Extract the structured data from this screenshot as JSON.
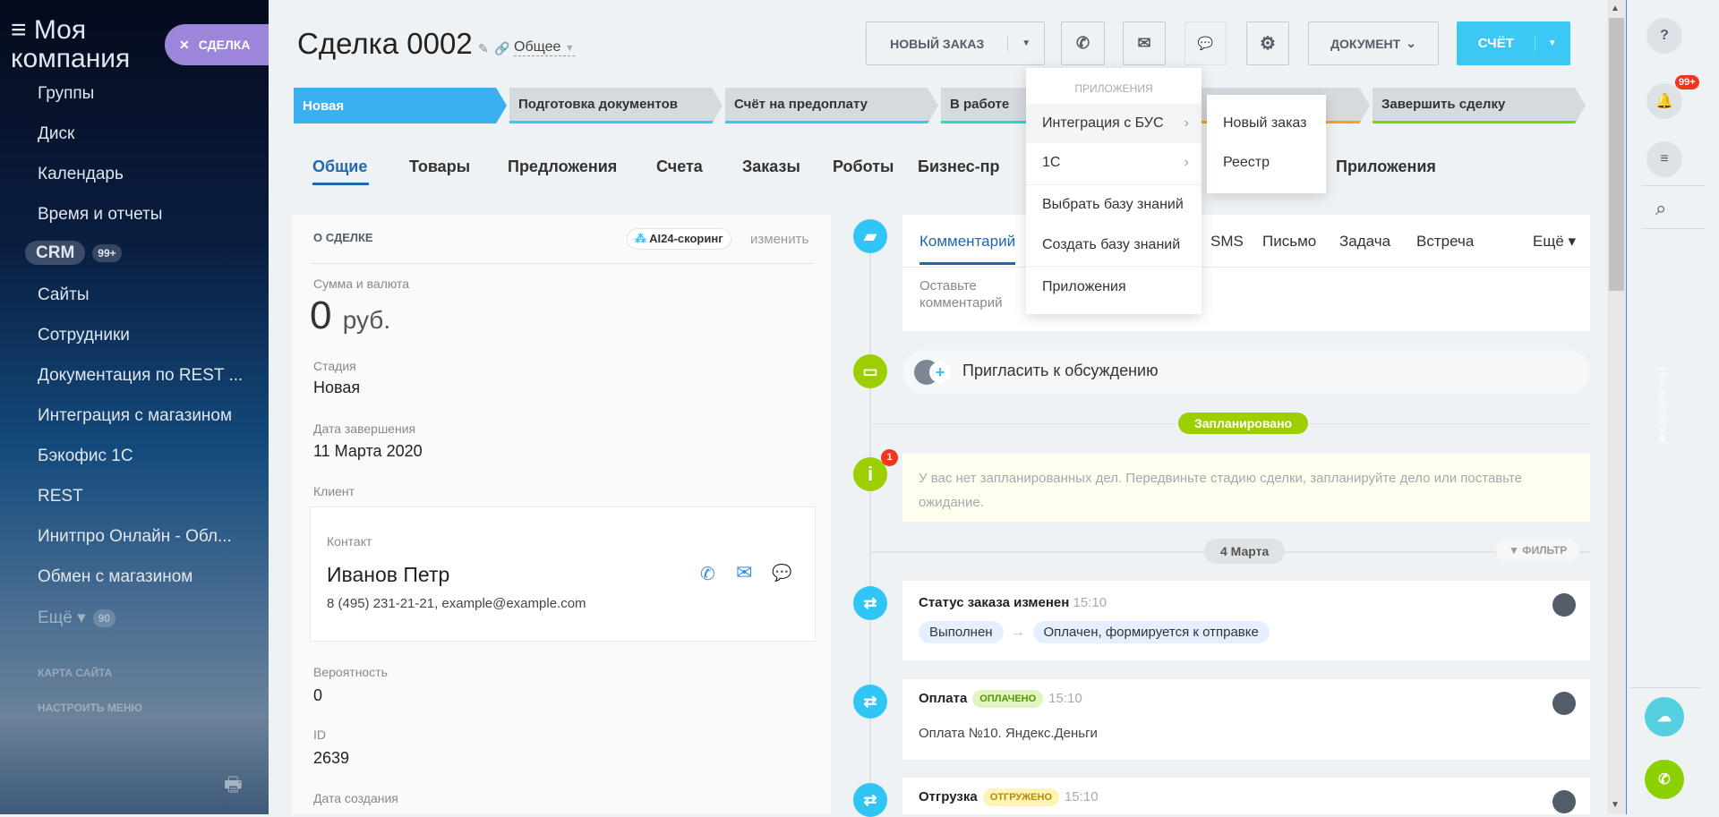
{
  "sidebar": {
    "logo": "Моя компания",
    "deal_button": "СДЕЛКА",
    "items": [
      {
        "label": "Группы"
      },
      {
        "label": "Диск"
      },
      {
        "label": "Календарь"
      },
      {
        "label": "Время и отчеты"
      },
      {
        "label": "CRM",
        "badge": "99+"
      },
      {
        "label": "Сайты"
      },
      {
        "label": "Сотрудники"
      },
      {
        "label": "Документация по REST ..."
      },
      {
        "label": "Интеграция с магазином"
      },
      {
        "label": "Бэкофис 1С"
      },
      {
        "label": "REST"
      },
      {
        "label": "Инитпро Онлайн - Обл..."
      },
      {
        "label": "Обмен с магазином"
      },
      {
        "label": "Ещё",
        "badge": "90"
      }
    ],
    "site_map": "КАРТА САЙТА",
    "configure_menu": "НАСТРОИТЬ МЕНЮ"
  },
  "header": {
    "title": "Сделка 0002",
    "category": "Общее",
    "new_order": "НОВЫЙ ЗАКАЗ",
    "document": "ДОКУМЕНТ",
    "invoice": "СЧЁТ"
  },
  "stages": [
    {
      "label": "Новая",
      "color": "#3bb0f0"
    },
    {
      "label": "Подготовка документов",
      "color": "#3bc8f0"
    },
    {
      "label": "Счёт на предоплату",
      "color": "#3bc8f0"
    },
    {
      "label": "В работе",
      "color": "#2fd6c0"
    },
    {
      "label": "",
      "color": "#ff9f1a"
    },
    {
      "label": "Завершить сделку",
      "color": "#7bd500"
    }
  ],
  "tabs": [
    "Общие",
    "Товары",
    "Предложения",
    "Счета",
    "Заказы",
    "Роботы",
    "Бизнес-пр",
    "Приложения"
  ],
  "about": {
    "heading": "О СДЕЛКЕ",
    "scoring": "AI24-скоринг",
    "edit": "изменить",
    "amount_label": "Сумма и валюта",
    "amount": "0",
    "currency": "руб.",
    "stage_label": "Стадия",
    "stage": "Новая",
    "close_label": "Дата завершения",
    "close_date": "11 Марта 2020",
    "client_label": "Клиент",
    "contact_label": "Контакт",
    "contact_name": "Иванов Петр",
    "contact_info": "8 (495) 231-21-21, example@example.com",
    "probability_label": "Вероятность",
    "probability": "0",
    "id_label": "ID",
    "id": "2639",
    "created_label": "Дата создания"
  },
  "timeline": {
    "tabs": [
      "Комментарий",
      "SMS",
      "Письмо",
      "Задача",
      "Встреча"
    ],
    "more": "Ещё",
    "comment_placeholder": "Оставьте комментарий",
    "invite": "Пригласить к обсуждению",
    "planned": "Запланировано",
    "planned_count": "1",
    "no_tasks": "У вас нет запланированных дел. Передвиньте стадию сделки, запланируйте дело или поставьте ожидание.",
    "date": "4 Марта",
    "filter": "ФИЛЬТР",
    "events": [
      {
        "title": "Статус заказа изменен",
        "time": "15:10",
        "from": "Выполнен",
        "to": "Оплачен, формируется к отправке"
      },
      {
        "title": "Оплата",
        "chip": "ОПЛАЧЕНО",
        "time": "15:10",
        "text": "Оплата №10. Яндекс.Деньги"
      },
      {
        "title": "Отгрузка",
        "chip": "ОТГРУЖЕНО",
        "time": "15:10"
      }
    ]
  },
  "dropdown": {
    "header": "ПРИЛОЖЕНИЯ",
    "items": [
      "Интеграция с БУС",
      "1С",
      "Выбрать базу знаний",
      "Создать базу знаний",
      "Приложения"
    ],
    "submenu": [
      "Новый заказ",
      "Реестр"
    ]
  },
  "right_panel": {
    "notifications": "99+",
    "no_contacts": "Нет контактов"
  }
}
